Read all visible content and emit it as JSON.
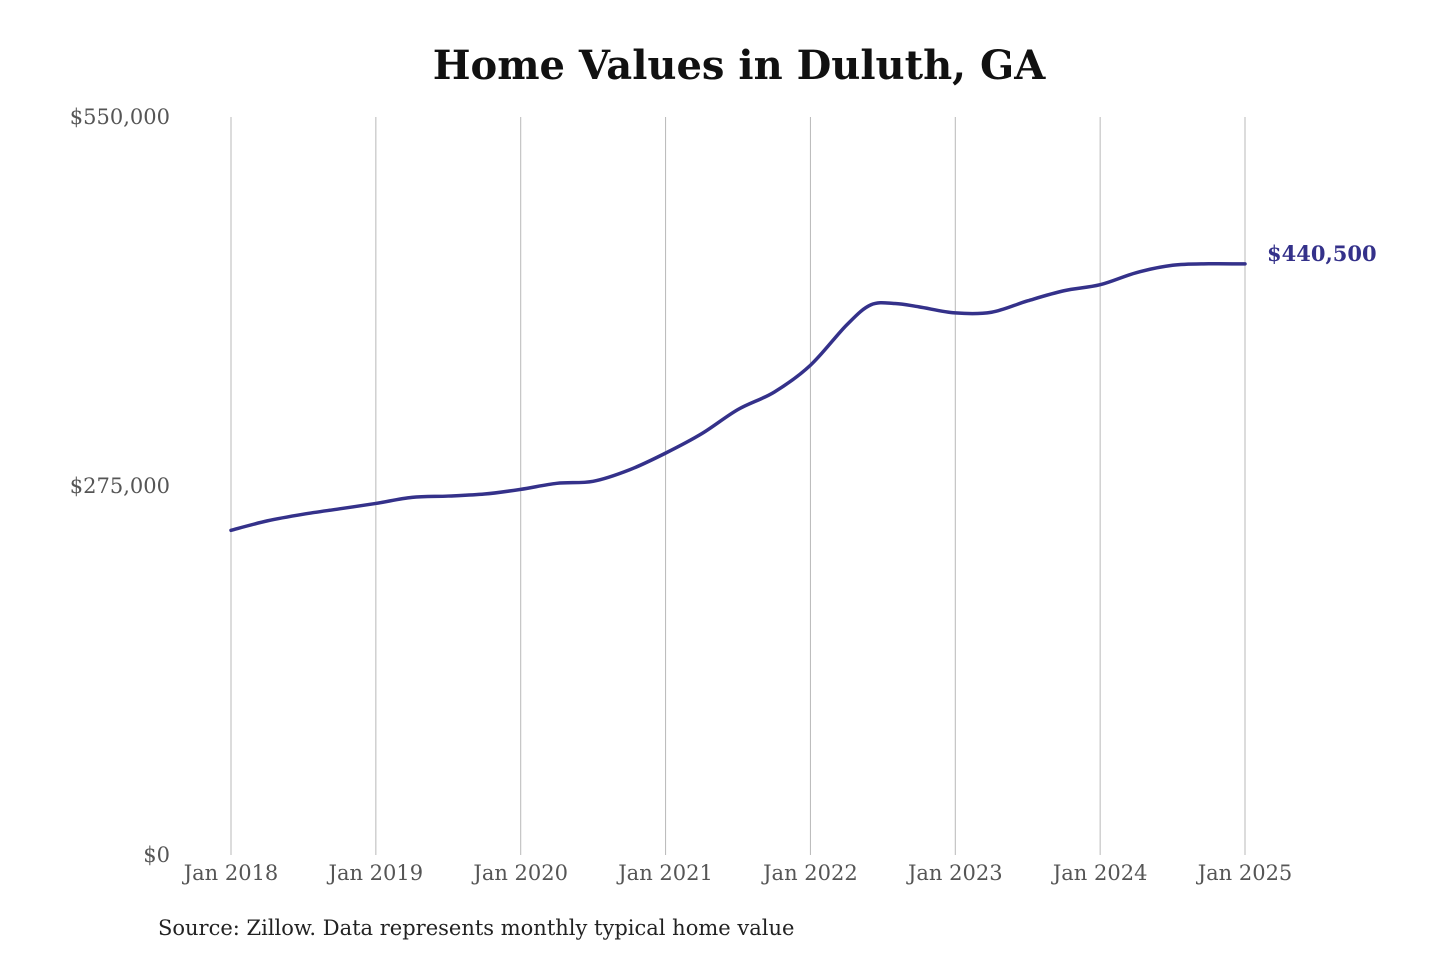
{
  "colors": {
    "line": "#34318a",
    "grid": "#b8b8b8",
    "end_label": "#34318a"
  },
  "chart_data": {
    "type": "line",
    "title": "Home Values in Duluth, GA",
    "xlabel": "",
    "ylabel": "",
    "ylim": [
      0,
      550000
    ],
    "xlim": [
      "2018-01",
      "2025-01"
    ],
    "y_ticks": [
      0,
      275000,
      550000
    ],
    "y_tick_labels": [
      "$0",
      "$275,000",
      "$550,000"
    ],
    "x_ticks": [
      "2018-01",
      "2019-01",
      "2020-01",
      "2021-01",
      "2022-01",
      "2023-01",
      "2024-01",
      "2025-01"
    ],
    "x_tick_labels": [
      "Jan 2018",
      "Jan 2019",
      "Jan 2020",
      "Jan 2021",
      "Jan 2022",
      "Jan 2023",
      "Jan 2024",
      "Jan 2025"
    ],
    "grid": "vertical",
    "end_label": "$440,500",
    "source": "Source: Zillow. Data represents monthly typical home value",
    "series": [
      {
        "points": [
          [
            "2018-01",
            242000
          ],
          [
            "2018-04",
            249000
          ],
          [
            "2018-07",
            254000
          ],
          [
            "2018-10",
            258000
          ],
          [
            "2019-01",
            262000
          ],
          [
            "2019-04",
            266500
          ],
          [
            "2019-07",
            267500
          ],
          [
            "2019-10",
            269000
          ],
          [
            "2020-01",
            272500
          ],
          [
            "2020-04",
            277000
          ],
          [
            "2020-07",
            278500
          ],
          [
            "2020-10",
            287000
          ],
          [
            "2021-01",
            299500
          ],
          [
            "2021-04",
            314000
          ],
          [
            "2021-07",
            332000
          ],
          [
            "2021-10",
            345000
          ],
          [
            "2022-01",
            365000
          ],
          [
            "2022-04",
            395000
          ],
          [
            "2022-06",
            410000
          ],
          [
            "2022-08",
            411000
          ],
          [
            "2022-10",
            408500
          ],
          [
            "2023-01",
            404000
          ],
          [
            "2023-04",
            404500
          ],
          [
            "2023-07",
            413000
          ],
          [
            "2023-10",
            420500
          ],
          [
            "2024-01",
            425000
          ],
          [
            "2024-04",
            434000
          ],
          [
            "2024-07",
            439500
          ],
          [
            "2024-10",
            440600
          ],
          [
            "2025-01",
            440500
          ]
        ]
      }
    ]
  }
}
